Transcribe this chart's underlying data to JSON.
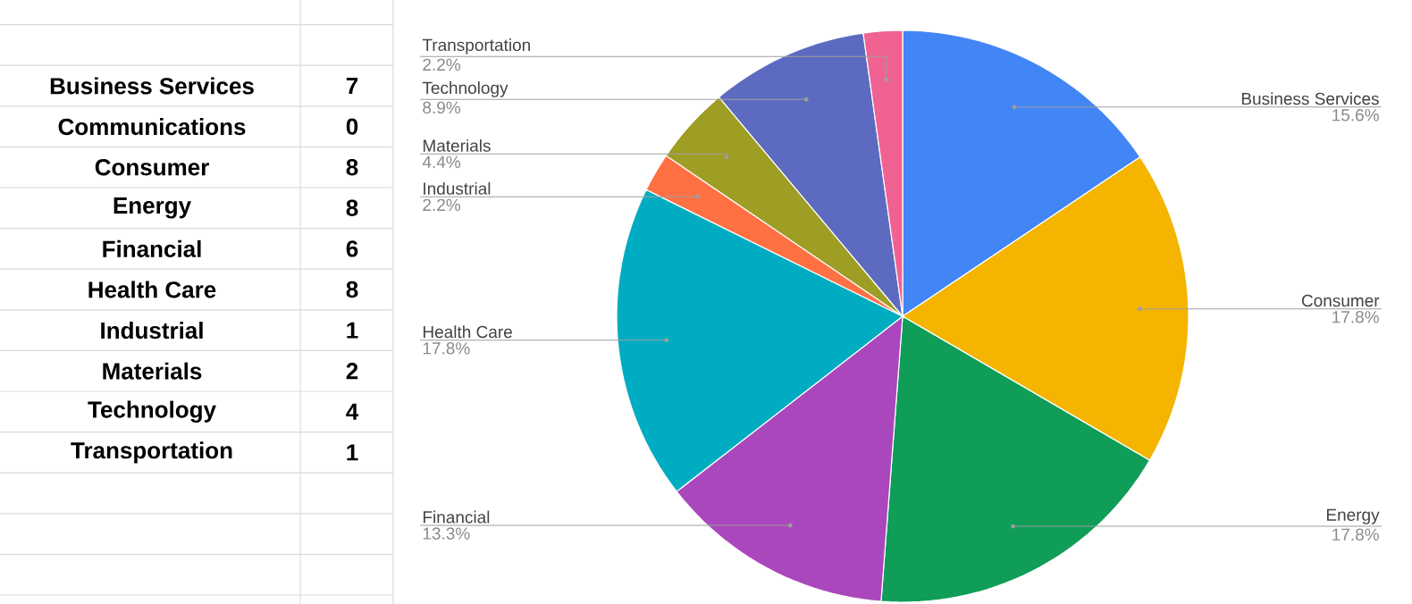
{
  "chart_data": [
    {
      "type": "other",
      "categories": [
        "Business Services",
        "Communications",
        "Consumer",
        "Energy",
        "Financial",
        "Health Care",
        "Industrial",
        "Materials",
        "Technology",
        "Transportation"
      ],
      "values": [
        7,
        0,
        8,
        8,
        6,
        8,
        1,
        2,
        4,
        1
      ],
      "data_labels": true
    },
    {
      "type": "pie",
      "categories": [
        "Business Services",
        "Consumer",
        "Energy",
        "Financial",
        "Health Care",
        "Industrial",
        "Materials",
        "Technology",
        "Transportation"
      ],
      "values": [
        15.6,
        17.8,
        17.8,
        13.3,
        17.8,
        2.2,
        4.4,
        8.9,
        2.2
      ],
      "colors": [
        "#4285f4",
        "#f4b400",
        "#0f9d58",
        "#ab47bc",
        "#00acc1",
        "#ff7043",
        "#9e9d24",
        "#5c6bc0",
        "#f06292"
      ],
      "value_labels": [
        "15.6%",
        "17.8%",
        "17.8%",
        "13.3%",
        "17.8%",
        "2.2%",
        "4.4%",
        "8.9%",
        "2.2%"
      ]
    }
  ]
}
